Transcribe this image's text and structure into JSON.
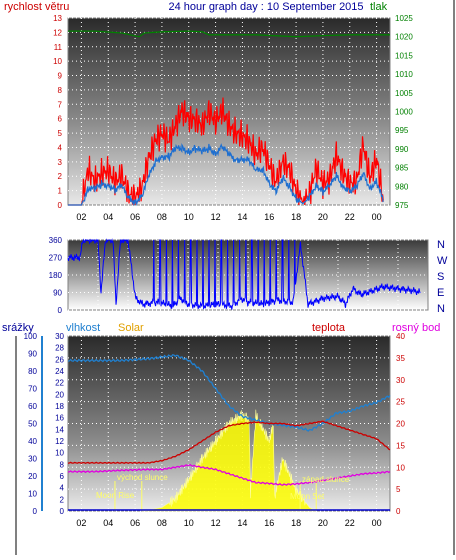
{
  "header": {
    "left_label": "rychlost větru",
    "title": "24 hour graph day : 10 September 2015",
    "right_label": "tlak"
  },
  "hours": [
    "02",
    "04",
    "06",
    "08",
    "10",
    "12",
    "14",
    "16",
    "18",
    "20",
    "22",
    "00"
  ],
  "colors": {
    "wind_gust": "#ff0000",
    "wind_avg": "#1e6fd0",
    "pressure": "#008000",
    "direction": "#0000ff",
    "temperature": "#cc0000",
    "dewpoint": "#e000e0",
    "humidity": "#2080d0",
    "solar": "#ffff00",
    "rain": "#0000cc",
    "celestial": "#ffff66"
  },
  "wind_panel": {
    "left_ticks": [
      "0",
      "1",
      "2",
      "3",
      "4",
      "5",
      "6",
      "7",
      "8",
      "9",
      "10",
      "11",
      "12",
      "13"
    ],
    "right_ticks": [
      "975",
      "980",
      "985",
      "990",
      "995",
      "1000",
      "1005",
      "1010",
      "1015",
      "1020",
      "1025"
    ]
  },
  "direction_panel": {
    "left_ticks": [
      "0",
      "90",
      "180",
      "270",
      "360"
    ],
    "compass": [
      "N",
      "W",
      "S",
      "E",
      "N"
    ]
  },
  "weather_panel": {
    "labels": {
      "rain": "srážky",
      "humidity": "vlhkost",
      "solar": "Solar",
      "temperature": "teplota",
      "dewpoint": "rosný bod"
    },
    "rain_ticks": [
      "0",
      "10",
      "20",
      "30",
      "40",
      "50",
      "60",
      "70",
      "80",
      "90",
      "100"
    ],
    "humidity_ticks": [
      "0",
      "2",
      "4",
      "6",
      "8",
      "10",
      "12",
      "14",
      "16",
      "18",
      "20",
      "22",
      "24",
      "26",
      "28",
      "30"
    ],
    "temp_ticks": [
      "0",
      "5",
      "10",
      "15",
      "20",
      "25",
      "30",
      "35",
      "40"
    ],
    "events": [
      {
        "label": "Moon Rise",
        "time": 4.5
      },
      {
        "label": "východ slunce",
        "time": 6.5
      },
      {
        "label": "západ slunce",
        "time": 19.5
      },
      {
        "label": "Moon Set",
        "time": 18.3
      }
    ]
  },
  "chart_data": [
    {
      "type": "line",
      "title": "24 hour graph day : 10 September 2015",
      "x_unit": "hour of day",
      "xlim": [
        1,
        25
      ],
      "ylabel": "rychlost větru",
      "ylim": [
        0,
        13
      ],
      "y2label": "tlak",
      "y2lim": [
        975,
        1025
      ],
      "series": [
        {
          "name": "",
          "axis": "left",
          "x": [
            1,
            2,
            2.5,
            3,
            3.5,
            4,
            4.5,
            5,
            5.5,
            6,
            6.5,
            7,
            7.5,
            8,
            8.5,
            9,
            9.5,
            10,
            10.5,
            11,
            11.5,
            12,
            12.5,
            13,
            13.5,
            14,
            14.5,
            15,
            15.5,
            16,
            16.5,
            17,
            17.5,
            18,
            18.5,
            19,
            19.5,
            20,
            20.5,
            21,
            21.5,
            22,
            22.5,
            23,
            23.5,
            24,
            24.5
          ],
          "values": [
            0,
            0,
            2.5,
            1.6,
            2.2,
            2.4,
            1.6,
            2.1,
            0.8,
            0.5,
            1.2,
            3.2,
            4.5,
            5.0,
            4.5,
            5.5,
            6.6,
            6.0,
            5.9,
            5.5,
            6.5,
            5.8,
            6.6,
            5.5,
            5.0,
            4.8,
            4.4,
            3.5,
            4.0,
            2.8,
            1.6,
            3.0,
            2.5,
            1.0,
            0.2,
            0.8,
            2.6,
            1.5,
            1.8,
            3.5,
            2.2,
            1.5,
            1.6,
            4.2,
            1.9,
            3.2,
            0.3
          ]
        },
        {
          "name": "",
          "axis": "left",
          "x": [
            1,
            2,
            2.5,
            3,
            3.5,
            4,
            4.5,
            5,
            5.5,
            6,
            6.5,
            7,
            7.5,
            8,
            8.5,
            9,
            9.5,
            10,
            10.5,
            11,
            11.5,
            12,
            12.5,
            13,
            13.5,
            14,
            14.5,
            15,
            15.5,
            16,
            16.5,
            17,
            17.5,
            18,
            18.5,
            19,
            19.5,
            20,
            20.5,
            21,
            21.5,
            22,
            22.5,
            23,
            23.5,
            24,
            24.5
          ],
          "values": [
            0,
            0,
            1.2,
            1.0,
            1.4,
            1.5,
            1.1,
            1.2,
            0.5,
            0.3,
            0.6,
            1.8,
            3.0,
            3.5,
            3.3,
            3.8,
            4.0,
            3.8,
            3.9,
            3.6,
            4.0,
            3.7,
            4.0,
            3.4,
            3.2,
            3.3,
            3.0,
            2.3,
            2.6,
            1.6,
            0.8,
            1.8,
            1.4,
            0.5,
            0.1,
            0.5,
            1.5,
            1.0,
            1.2,
            2.0,
            1.4,
            1.0,
            1.1,
            2.2,
            1.3,
            1.6,
            0.2
          ]
        },
        {
          "name": "",
          "axis": "right",
          "x": [
            1,
            3,
            5,
            6.3,
            6.7,
            8,
            10,
            11,
            11.5,
            13,
            15,
            18,
            20,
            22,
            24,
            25
          ],
          "values": [
            1021.5,
            1021.5,
            1021,
            1020,
            1021,
            1021.3,
            1021.5,
            1021.3,
            1020.5,
            1020.5,
            1020.5,
            1020,
            1020.3,
            1020.5,
            1020.5,
            1020.5
          ]
        }
      ]
    },
    {
      "type": "line",
      "ylabel": "",
      "ylim": [
        0,
        360
      ],
      "series": [
        {
          "name": "",
          "x": [
            1,
            1.8,
            2,
            3,
            3.2,
            3.5,
            4,
            4.2,
            4.5,
            5,
            5.5,
            6,
            7,
            8,
            8.5,
            9,
            10,
            11,
            12,
            12.5,
            13,
            14,
            15,
            16,
            16.5,
            17,
            18,
            19,
            19.5,
            20,
            20.5,
            21,
            22,
            23,
            24,
            24.5
          ],
          "values": [
            270,
            270,
            360,
            360,
            90,
            360,
            360,
            30,
            360,
            360,
            60,
            30,
            40,
            20,
            60,
            30,
            20,
            30,
            20,
            60,
            40,
            30,
            50,
            40,
            340,
            30,
            60,
            70,
            30,
            110,
            80,
            90,
            120,
            110,
            100,
            90
          ]
        }
      ]
    },
    {
      "type": "area",
      "ylabel": "srážky",
      "ylim": [
        0,
        100
      ],
      "series": [
        {
          "name": "",
          "axis": "temperature",
          "ylim": [
            0,
            40
          ],
          "x": [
            1,
            3,
            5,
            7,
            8,
            9,
            10,
            11,
            12,
            13,
            14,
            15,
            16,
            17,
            18,
            19,
            20,
            21,
            22,
            23,
            24,
            25
          ],
          "values": [
            11,
            11,
            11,
            11,
            11.5,
            12.5,
            14,
            16,
            18,
            19.5,
            20,
            20.3,
            20,
            20,
            19.5,
            20,
            20.5,
            19.5,
            18.5,
            17.5,
            16.5,
            14
          ]
        },
        {
          "name": "",
          "axis": "temperature",
          "ylim": [
            0,
            40
          ],
          "x": [
            1,
            3,
            5,
            7,
            8,
            9,
            10,
            11,
            12,
            13,
            14,
            15,
            16,
            17,
            18,
            19,
            20,
            21,
            22,
            23,
            24,
            25
          ],
          "values": [
            9,
            9,
            9.3,
            9.5,
            9.5,
            10,
            10.5,
            10,
            9.5,
            8.5,
            7.5,
            6.5,
            6.3,
            6,
            6.2,
            6.5,
            7,
            7.5,
            8,
            8.5,
            8.7,
            9
          ]
        },
        {
          "name": "",
          "axis": "humidity",
          "ylim": [
            0,
            100
          ],
          "x": [
            1,
            3,
            5,
            7,
            8,
            9,
            10,
            11,
            12,
            13,
            14,
            15,
            16,
            17,
            18,
            19,
            20,
            21,
            22,
            23,
            24,
            25
          ],
          "values": [
            86,
            86,
            86,
            87,
            88,
            89,
            86,
            80,
            70,
            60,
            54,
            52,
            50,
            49,
            48,
            46,
            50,
            56,
            57,
            60,
            62,
            66
          ]
        },
        {
          "name": "",
          "axis": "solar",
          "ylim": [
            0,
            100
          ],
          "x": [
            6.5,
            7,
            8,
            9,
            10,
            11,
            12,
            13,
            14,
            14.5,
            14.6,
            15,
            16,
            16.3,
            16.4,
            17,
            18,
            19,
            19.5
          ],
          "values": [
            0,
            0.5,
            2,
            7,
            18,
            30,
            40,
            50,
            55,
            52,
            10,
            55,
            40,
            50,
            8,
            30,
            12,
            2,
            0
          ]
        }
      ]
    }
  ]
}
